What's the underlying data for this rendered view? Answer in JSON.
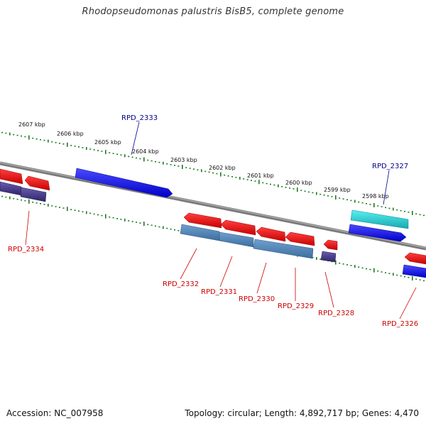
{
  "title": "Rhodopseudomonas palustris BisB5, complete genome",
  "footer": {
    "accession": "Accession: NC_007958",
    "summary": "Topology: circular; Length: 4,892,717 bp; Genes: 4,470"
  },
  "colors": {
    "backbone": "#808080",
    "ticks": "#1e7a1e",
    "label_plus": "#00008b",
    "label_minus": "#cc0000",
    "gene_blue": "#1a1aee",
    "gene_red": "#ee1a1a",
    "gene_steel": "#4a7fb5",
    "gene_purple": "#463a86",
    "gene_cyan": "#20cccc"
  },
  "scale_labels": [
    "2607 kbp",
    "2606 kbp",
    "2605 kbp",
    "2604 kbp",
    "2603 kbp",
    "2602 kbp",
    "2601 kbp",
    "2600 kbp",
    "2599 kbp",
    "2598 kbp"
  ],
  "gene_labels": {
    "top": [
      "RPD_2333",
      "RPD_2327"
    ],
    "bottom": [
      "RPD_2334",
      "RPD_2332",
      "RPD_2331",
      "RPD_2330",
      "RPD_2329",
      "RPD_2328",
      "RPD_2326"
    ]
  }
}
